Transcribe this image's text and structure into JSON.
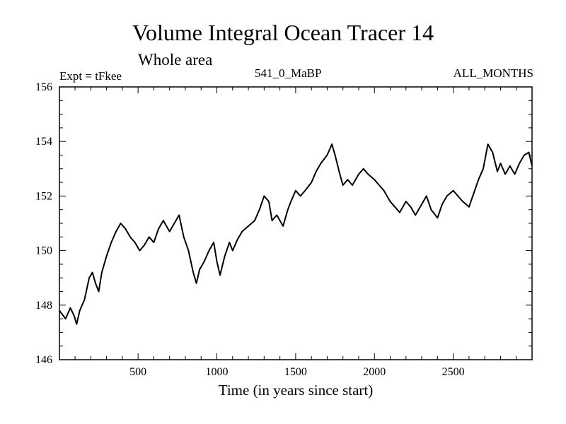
{
  "chart_data": {
    "type": "line",
    "title": "Volume Integral Ocean Tracer 14",
    "subtitle": "Whole area",
    "header_left": "Expt = tFkee",
    "header_center": "541_0_MaBP",
    "header_right": "ALL_MONTHS",
    "xlabel": "Time (in years since start)",
    "ylabel": "",
    "xlim": [
      1,
      3000
    ],
    "ylim": [
      146,
      156
    ],
    "xticks": [
      500,
      1000,
      1500,
      2000,
      2500
    ],
    "yticks": [
      146,
      148,
      150,
      152,
      154,
      156
    ],
    "grid": false,
    "series": [
      {
        "color": "#000000",
        "x": [
          1,
          40,
          70,
          95,
          110,
          130,
          160,
          190,
          210,
          230,
          250,
          270,
          300,
          330,
          360,
          390,
          420,
          450,
          480,
          510,
          540,
          570,
          600,
          630,
          660,
          700,
          730,
          760,
          790,
          820,
          850,
          870,
          890,
          920,
          950,
          980,
          1000,
          1020,
          1050,
          1080,
          1100,
          1130,
          1160,
          1200,
          1240,
          1270,
          1300,
          1330,
          1350,
          1380,
          1420,
          1450,
          1470,
          1500,
          1530,
          1560,
          1600,
          1630,
          1660,
          1700,
          1730,
          1750,
          1780,
          1800,
          1830,
          1860,
          1900,
          1930,
          1960,
          2000,
          2030,
          2060,
          2100,
          2130,
          2160,
          2200,
          2230,
          2260,
          2300,
          2330,
          2360,
          2400,
          2430,
          2460,
          2500,
          2530,
          2560,
          2600,
          2630,
          2660,
          2690,
          2720,
          2750,
          2780,
          2800,
          2830,
          2860,
          2890,
          2920,
          2950,
          2980,
          3000
        ],
        "values": [
          147.8,
          147.5,
          147.9,
          147.6,
          147.3,
          147.8,
          148.2,
          149.0,
          149.2,
          148.8,
          148.5,
          149.2,
          149.8,
          150.3,
          150.7,
          151.0,
          150.8,
          150.5,
          150.3,
          150.0,
          150.2,
          150.5,
          150.3,
          150.8,
          151.1,
          150.7,
          151.0,
          151.3,
          150.5,
          150.0,
          149.2,
          148.8,
          149.3,
          149.6,
          150.0,
          150.3,
          149.6,
          149.1,
          149.8,
          150.3,
          150.0,
          150.4,
          150.7,
          150.9,
          151.1,
          151.5,
          152.0,
          151.8,
          151.1,
          151.3,
          150.9,
          151.5,
          151.8,
          152.2,
          152.0,
          152.2,
          152.5,
          152.9,
          153.2,
          153.5,
          153.9,
          153.5,
          152.8,
          152.4,
          152.6,
          152.4,
          152.8,
          153.0,
          152.8,
          152.6,
          152.4,
          152.2,
          151.8,
          151.6,
          151.4,
          151.8,
          151.6,
          151.3,
          151.7,
          152.0,
          151.5,
          151.2,
          151.7,
          152.0,
          152.2,
          152.0,
          151.8,
          151.6,
          152.1,
          152.6,
          153.0,
          153.9,
          153.6,
          152.9,
          153.2,
          152.8,
          153.1,
          152.8,
          153.2,
          153.5,
          153.6,
          153.1
        ]
      }
    ]
  }
}
